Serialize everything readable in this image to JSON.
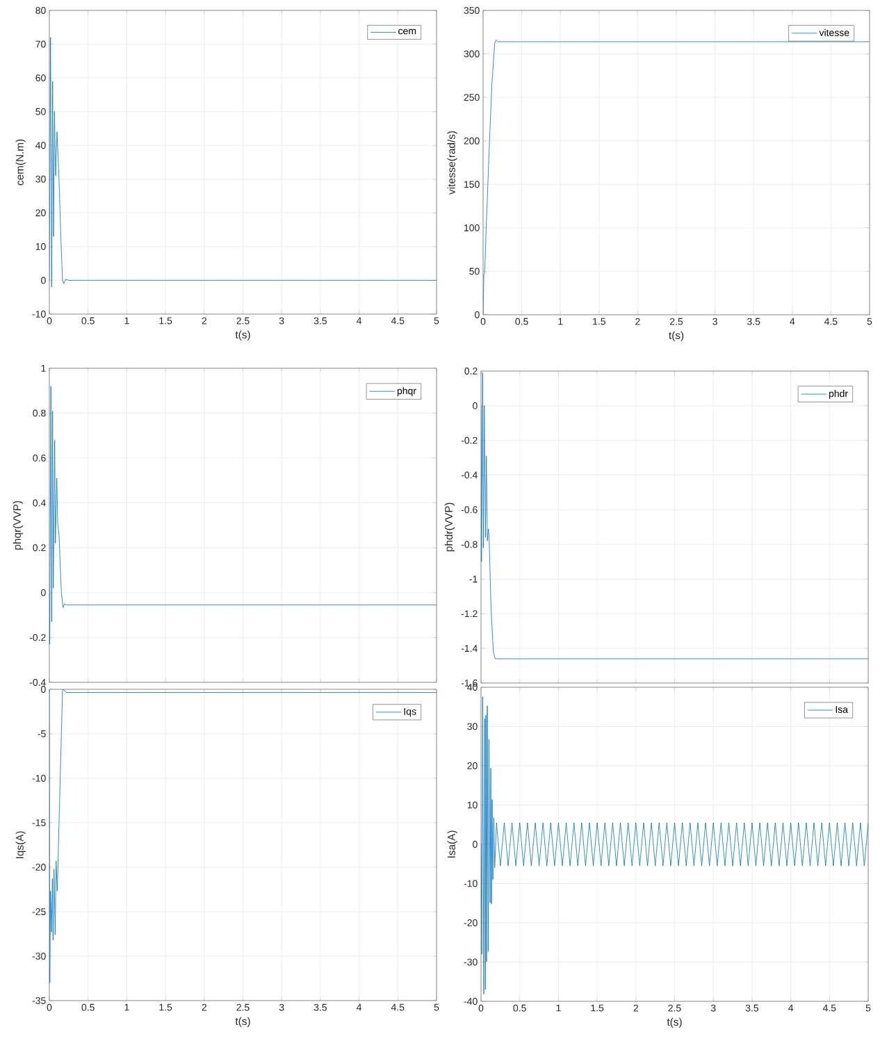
{
  "chart_data": [
    {
      "type": "line",
      "xlabel": "t(s)",
      "ylabel": "cem(N.m)",
      "xlim": [
        0,
        5
      ],
      "ylim": [
        -10,
        80
      ],
      "xticks": [
        0,
        0.5,
        1,
        1.5,
        2,
        2.5,
        3,
        3.5,
        4,
        4.5,
        5
      ],
      "yticks": [
        -10,
        0,
        10,
        20,
        30,
        40,
        50,
        60,
        70,
        80
      ],
      "grid": true,
      "legend": "top right",
      "series": [
        {
          "name": "cem",
          "color": "#0072bd",
          "x": [
            0,
            0.015,
            0.03,
            0.042,
            0.054,
            0.066,
            0.081,
            0.099,
            0.12,
            0.15,
            0.17,
            0.186,
            0.21,
            0.25,
            5
          ],
          "values": [
            0,
            72,
            -2,
            59,
            13,
            50,
            31,
            44,
            33,
            12,
            0,
            -1,
            0.3,
            0,
            0
          ]
        }
      ]
    },
    {
      "type": "line",
      "xlabel": "t(s)",
      "ylabel": "vitesse(rad/s)",
      "xlim": [
        0,
        5
      ],
      "ylim": [
        0,
        350
      ],
      "xticks": [
        0,
        0.5,
        1,
        1.5,
        2,
        2.5,
        3,
        3.5,
        4,
        4.5,
        5
      ],
      "yticks": [
        0,
        50,
        100,
        150,
        200,
        250,
        300,
        350
      ],
      "grid": true,
      "legend": "top right",
      "series": [
        {
          "name": "vitesse",
          "color": "#0072bd",
          "x": [
            0,
            0.01,
            0.02,
            0.04,
            0.084,
            0.114,
            0.15,
            0.165,
            0.19,
            5
          ],
          "values": [
            0,
            47,
            48,
            100,
            202,
            266,
            312,
            316,
            314,
            314
          ]
        }
      ]
    },
    {
      "type": "line",
      "ylabel": "phqr(VVP)",
      "xlim": [
        0,
        5
      ],
      "ylim": [
        -0.4,
        1
      ],
      "xticks": [
        0,
        0.5,
        1,
        1.5,
        2,
        2.5,
        3,
        3.5,
        4,
        4.5,
        5
      ],
      "yticks": [
        -0.4,
        -0.2,
        0,
        0.2,
        0.4,
        0.6,
        0.8,
        1
      ],
      "grid": true,
      "legend": "top right",
      "tick_labels": "y",
      "series": [
        {
          "name": "phqr",
          "color": "#0072bd",
          "x": [
            0,
            0.005,
            0.02,
            0.03,
            0.042,
            0.051,
            0.069,
            0.078,
            0.096,
            0.108,
            0.126,
            0.155,
            0.177,
            0.195,
            0.22,
            5
          ],
          "values": [
            0,
            -0.23,
            0.92,
            -0.13,
            0.81,
            0.02,
            0.68,
            0.22,
            0.51,
            0.31,
            0.25,
            0,
            -0.067,
            -0.05,
            -0.055,
            -0.055
          ]
        }
      ]
    },
    {
      "type": "line",
      "ylabel": "phdr(VVP)",
      "xlim": [
        0,
        5
      ],
      "ylim": [
        -1.6,
        0.2
      ],
      "xticks": [
        0,
        0.5,
        1,
        1.5,
        2,
        2.5,
        3,
        3.5,
        4,
        4.5,
        5
      ],
      "yticks": [
        -1.6,
        -1.4,
        -1.2,
        -1,
        -0.8,
        -0.6,
        -0.4,
        -0.2,
        0,
        0.2
      ],
      "grid": true,
      "legend": "top right",
      "tick_labels": "y",
      "series": [
        {
          "name": "phdr",
          "color": "#0072bd",
          "x": [
            0,
            0.006,
            0.021,
            0.03,
            0.042,
            0.057,
            0.069,
            0.081,
            0.096,
            0.105,
            0.129,
            0.159,
            0.183,
            5
          ],
          "values": [
            0,
            -0.9,
            0.19,
            -0.82,
            0,
            -0.76,
            -0.29,
            -0.78,
            -0.71,
            -0.77,
            -1.16,
            -1.42,
            -1.46,
            -1.46
          ]
        }
      ]
    },
    {
      "type": "line",
      "xlabel": "t(s)",
      "ylabel": "Iqs(A)",
      "xlim": [
        0,
        5
      ],
      "ylim": [
        -35,
        0
      ],
      "xticks": [
        0,
        0.5,
        1,
        1.5,
        2,
        2.5,
        3,
        3.5,
        4,
        4.5,
        5
      ],
      "yticks": [
        -35,
        -30,
        -25,
        -20,
        -15,
        -10,
        -5,
        0
      ],
      "grid": true,
      "legend": "top right",
      "series": [
        {
          "name": "Iqs",
          "color": "#0072bd",
          "x": [
            0,
            0.006,
            0.015,
            0.027,
            0.039,
            0.048,
            0.06,
            0.075,
            0.087,
            0.102,
            0.17,
            0.18,
            0.215,
            5
          ],
          "values": [
            0,
            -33,
            -22.7,
            -27.3,
            -21.3,
            -28.2,
            -20.2,
            -27.6,
            -19.3,
            -22.7,
            -0.1,
            0,
            -0.35,
            -0.35
          ]
        }
      ]
    },
    {
      "type": "line",
      "xlabel": "t(s)",
      "ylabel": "Isa(A)",
      "xlim": [
        0,
        5
      ],
      "ylim": [
        -40,
        40
      ],
      "xticks": [
        0,
        0.5,
        1,
        1.5,
        2,
        2.5,
        3,
        3.5,
        4,
        4.5,
        5
      ],
      "yticks": [
        -40,
        -30,
        -20,
        -10,
        0,
        10,
        20,
        30,
        40
      ],
      "grid": true,
      "legend": "top right",
      "series": [
        {
          "name": "Isa",
          "color": "#0072bd",
          "x": [
            0,
            0.01,
            0.021,
            0.036,
            0.048,
            0.057,
            0.063,
            0.072,
            0.081,
            0.093,
            0.102,
            0.117,
            0.126,
            0.135,
            0.144,
            0.153,
            0.165,
            0.177,
            0.2,
            0.25,
            0.3,
            0.35,
            0.4,
            0.45,
            0.5,
            0.55,
            0.6,
            0.65,
            0.7,
            0.75,
            0.8,
            0.85,
            0.9,
            0.95,
            1,
            1.05,
            1.1,
            1.15,
            1.2,
            1.25,
            1.3,
            1.35,
            1.4,
            1.45,
            1.5,
            1.55,
            1.6,
            1.65,
            1.7,
            1.75,
            1.8,
            1.85,
            1.9,
            1.95,
            2,
            2.05,
            2.1,
            2.15,
            2.2,
            2.25,
            2.3,
            2.35,
            2.4,
            2.45,
            2.5,
            2.55,
            2.6,
            2.65,
            2.7,
            2.75,
            2.8,
            2.85,
            2.9,
            2.95,
            3,
            3.05,
            3.1,
            3.15,
            3.2,
            3.25,
            3.3,
            3.35,
            3.4,
            3.45,
            3.5,
            3.55,
            3.6,
            3.65,
            3.7,
            3.75,
            3.8,
            3.85,
            3.9,
            3.95,
            4,
            4.05,
            4.1,
            4.15,
            4.2,
            4.25,
            4.3,
            4.35,
            4.4,
            4.45,
            4.5,
            4.55,
            4.6,
            4.65,
            4.7,
            4.75,
            4.8,
            4.85,
            4.9,
            4.95,
            5
          ],
          "values": [
            0,
            -28,
            37.6,
            -38.2,
            32,
            -37,
            32.9,
            -29.9,
            35.3,
            -27.3,
            26.7,
            -14.9,
            19.4,
            -15.2,
            11.4,
            -9,
            6.7,
            -6,
            5.5,
            -5.5,
            5.5,
            -5.5,
            5.5,
            -5.5,
            5.5,
            -5.5,
            5.5,
            -5.5,
            5.5,
            -5.5,
            5.5,
            -5.5,
            5.5,
            -5.5,
            5.5,
            -5.5,
            5.5,
            -5.5,
            5.5,
            -5.5,
            5.5,
            -5.5,
            5.5,
            -5.5,
            5.5,
            -5.5,
            5.5,
            -5.5,
            5.5,
            -5.5,
            5.5,
            -5.5,
            5.5,
            -5.5,
            5.5,
            -5.5,
            5.5,
            -5.5,
            5.5,
            -5.5,
            5.5,
            -5.5,
            5.5,
            -5.5,
            5.5,
            -5.5,
            5.5,
            -5.5,
            5.5,
            -5.5,
            5.5,
            -5.5,
            5.5,
            -5.5,
            5.5,
            -5.5,
            5.5,
            -5.5,
            5.5,
            -5.5,
            5.5,
            -5.5,
            5.5,
            -5.5,
            5.5,
            -5.5,
            5.5,
            -5.5,
            5.5,
            -5.5,
            5.5,
            -5.5,
            5.5,
            -5.5,
            5.5,
            -5.5,
            5.5,
            -5.5,
            5.5,
            -5.5,
            5.5,
            -5.5,
            5.5,
            -5.5,
            5.5,
            -5.5,
            5.5,
            -5.5,
            5.5,
            -5.5,
            5.5,
            -5.5,
            5.5,
            -5.5,
            5.5
          ]
        }
      ]
    }
  ]
}
